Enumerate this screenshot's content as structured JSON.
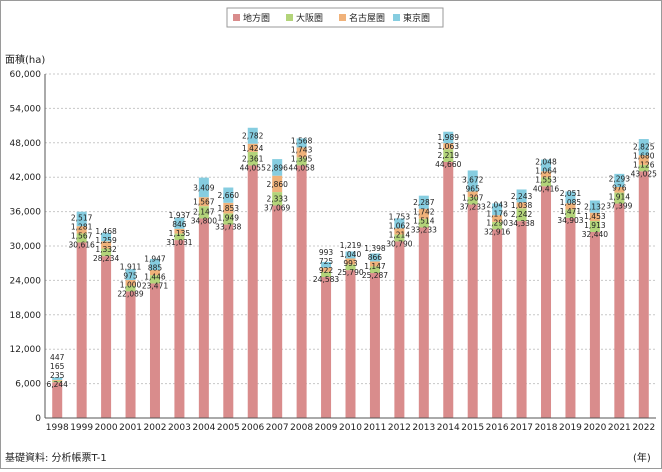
{
  "legend": [
    {
      "label": "地方圏",
      "color": "#d98c8c"
    },
    {
      "label": "大阪圏",
      "color": "#b3d47a"
    },
    {
      "label": "名古屋圏",
      "color": "#f0b27a"
    },
    {
      "label": "東京圏",
      "color": "#86cde0"
    }
  ],
  "ylabel": "面積(ha)",
  "xunit": "(年)",
  "source": "基礎資料: 分析帳票T-1",
  "chart_data": {
    "type": "bar",
    "stacked": true,
    "ylabel": "面積(ha)",
    "xlabel": "(年)",
    "ylim": [
      0,
      60000
    ],
    "yticks": [
      0,
      6000,
      12000,
      18000,
      24000,
      30000,
      36000,
      42000,
      48000,
      54000,
      60000
    ],
    "ytick_labels": [
      "0",
      "6,000",
      "12,000",
      "18,000",
      "24,000",
      "30,000",
      "36,000",
      "42,000",
      "48,000",
      "54,000",
      "60,000"
    ],
    "grid": true,
    "legend_position": "top-center",
    "categories": [
      "1998",
      "1999",
      "2000",
      "2001",
      "2002",
      "2003",
      "2004",
      "2005",
      "2006",
      "2007",
      "2008",
      "2009",
      "2010",
      "2011",
      "2012",
      "2013",
      "2014",
      "2015",
      "2016",
      "2017",
      "2018",
      "2019",
      "2020",
      "2021",
      "2022"
    ],
    "series": [
      {
        "name": "地方圏",
        "color": "#d98c8c",
        "values": [
          6244,
          30616,
          28234,
          22089,
          23471,
          31031,
          34800,
          33738,
          44055,
          37069,
          44058,
          24583,
          25790,
          25287,
          30790,
          33233,
          44660,
          37233,
          32916,
          34338,
          40416,
          34903,
          32440,
          37399,
          43025
        ],
        "labels": [
          "6,244",
          "30,616",
          "28,234",
          "22,089",
          "23,471",
          "31,031",
          "34,800",
          "33,738",
          "44,055",
          "37,069",
          "44,058",
          "24,583",
          "25,790",
          "25,287",
          "30,790",
          "33,233",
          "44,660",
          "37,233",
          "32,916",
          "34,338",
          "40,416",
          "34,903",
          "32,440",
          "37,399",
          "43,025"
        ]
      },
      {
        "name": "大阪圏",
        "color": "#b3d47a",
        "values": [
          235,
          1567,
          1332,
          1000,
          1446,
          1135,
          2147,
          1949,
          2361,
          2333,
          1395,
          922,
          993,
          1147,
          1214,
          1514,
          2219,
          1307,
          1290,
          2242,
          1553,
          1471,
          1913,
          1914,
          1126
        ],
        "labels": [
          "235",
          "1,567",
          "1,332",
          "1,000",
          "1,446",
          "1,135",
          "2,147",
          "1,949",
          "2,361",
          "2,333",
          "1,395",
          "922",
          "993",
          "1,147",
          "1,214",
          "1,514",
          "2,219",
          "1,307",
          "1,290",
          "2,242",
          "1,553",
          "1,471",
          "1,913",
          "1,914",
          "1,126"
        ]
      },
      {
        "name": "名古屋圏",
        "color": "#f0b27a",
        "values": [
          165,
          1281,
          1259,
          975,
          885,
          846,
          1567,
          1853,
          1424,
          2860,
          1743,
          725,
          1040,
          866,
          1062,
          1742,
          1063,
          965,
          1176,
          1038,
          1064,
          1085,
          1453,
          976,
          1680
        ],
        "labels": [
          "165",
          "1,281",
          "1,259",
          "975",
          "885",
          "846",
          "1,567",
          "1,853",
          "1,424",
          "2,860",
          "1,743",
          "725",
          "1,040",
          "866",
          "1,062",
          "1,742",
          "1,063",
          "965",
          "1,176",
          "1,038",
          "1,064",
          "1,085",
          "1,453",
          "976",
          "1,680"
        ]
      },
      {
        "name": "東京圏",
        "color": "#86cde0",
        "values": [
          447,
          2517,
          1468,
          1911,
          1947,
          1937,
          3409,
          2660,
          2782,
          2896,
          1568,
          993,
          1219,
          1398,
          1753,
          2287,
          1989,
          3672,
          2043,
          2243,
          2048,
          2051,
          2132,
          2293,
          2825
        ],
        "labels": [
          "447",
          "2,517",
          "1,468",
          "1,911",
          "1,947",
          "1,937",
          "3,409",
          "2,660",
          "2,782",
          "2,896",
          "1,568",
          "993",
          "1,219",
          "1,398",
          "1,753",
          "2,287",
          "1,989",
          "3,672",
          "2,043",
          "2,243",
          "2,048",
          "2,051",
          "2,132",
          "2,293",
          "2,825"
        ]
      }
    ]
  }
}
